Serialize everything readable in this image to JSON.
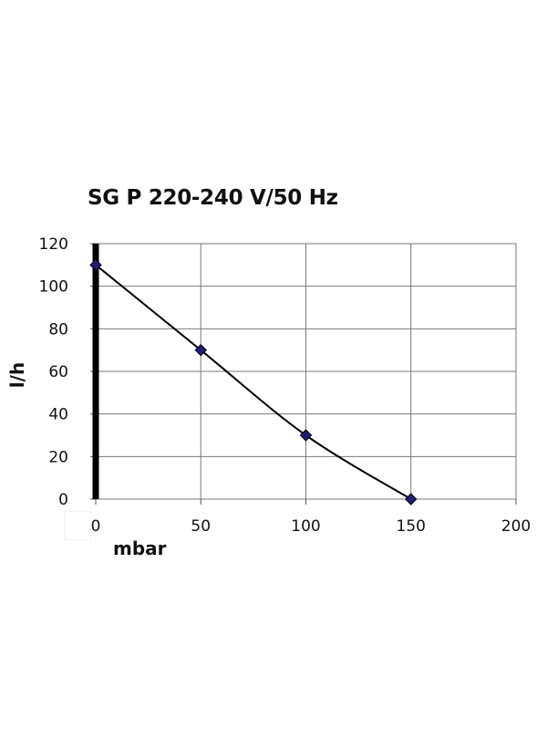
{
  "chart_data": {
    "type": "line",
    "title": "SG P 220-240 V/50 Hz",
    "xlabel": "mbar",
    "ylabel": "l/h",
    "xlim": [
      0,
      200
    ],
    "ylim": [
      0,
      120
    ],
    "x_ticks": [
      0,
      50,
      100,
      150,
      200
    ],
    "y_ticks": [
      0,
      20,
      40,
      60,
      80,
      100,
      120
    ],
    "grid": true,
    "series": [
      {
        "x": [
          0,
          50,
          100,
          150
        ],
        "values": [
          110,
          70,
          30,
          0
        ],
        "line_color": "#000000",
        "marker_color": "#1f1f7a"
      }
    ],
    "y_axis_color": "#000000"
  }
}
